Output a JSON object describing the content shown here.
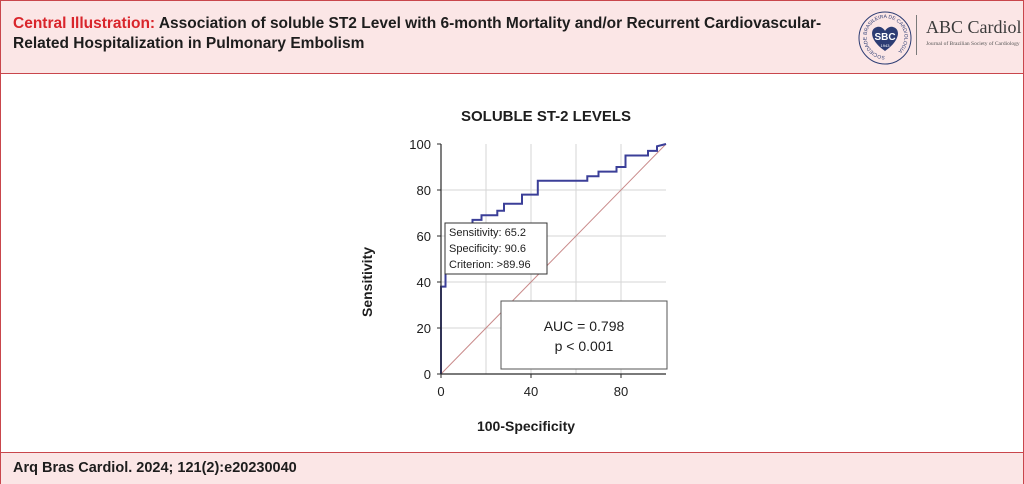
{
  "header": {
    "label": "Central Illustration:",
    "title": "Association of soluble ST2 Level with 6-month Mortality and/or Recurrent Cardiovascular-Related Hospitalization in Pulmonary Embolism"
  },
  "logo": {
    "sbc_text": "SBC",
    "ring_text": "SOCIEDADE BRASILEIRA DE CARDIOLOGIA",
    "year": "1943",
    "brand": "ABC Cardiol",
    "brand_sub": "Journal of Brazilian Society of Cardiology"
  },
  "footer": {
    "citation": "Arq Bras Cardiol. 2024; 121(2):e20230040"
  },
  "colors": {
    "accent": "#d9252b",
    "band": "#fbe6e6",
    "roc_line": "#3b3f98",
    "diagonal": "#c98a8a"
  },
  "chart_data": {
    "type": "line",
    "title": "SOLUBLE ST-2 LEVELS",
    "xlabel": "100-Specificity",
    "ylabel": "Sensitivity",
    "xlim": [
      0,
      100
    ],
    "ylim": [
      0,
      100
    ],
    "xticks": [
      0,
      40,
      80
    ],
    "yticks": [
      0,
      20,
      40,
      60,
      80,
      100
    ],
    "grid": true,
    "series": [
      {
        "x": [
          0,
          0,
          2,
          2,
          4,
          4,
          5,
          5,
          7,
          7,
          9.4,
          9.4,
          14,
          14,
          18,
          18,
          25,
          25,
          28,
          28,
          36,
          36,
          43,
          43,
          65,
          65,
          70,
          70,
          78,
          78,
          82,
          82,
          92,
          92,
          96,
          96,
          100
        ],
        "y": [
          0,
          38,
          38,
          46,
          46,
          52,
          52,
          58,
          58,
          62,
          62,
          65.2,
          65.2,
          67,
          67,
          69,
          69,
          71,
          71,
          74,
          74,
          78,
          78,
          84,
          84,
          86,
          86,
          88,
          88,
          90,
          90,
          95,
          95,
          97,
          97,
          99,
          100
        ]
      }
    ],
    "reference_line": {
      "x": [
        0,
        100
      ],
      "y": [
        0,
        100
      ]
    },
    "annotations": {
      "criterion_box": [
        "Sensitivity: 65.2",
        "Specificity: 90.6",
        "Criterion: >89.96"
      ],
      "auc_box": [
        "AUC = 0.798",
        "p < 0.001"
      ]
    }
  }
}
